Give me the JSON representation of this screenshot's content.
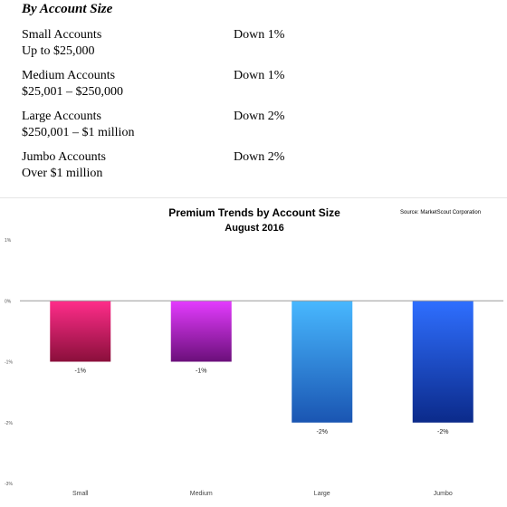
{
  "section": {
    "heading": "By Account Size",
    "rows": [
      {
        "name": "Small Accounts",
        "range": "Up to $25,000",
        "change": "Down 1%"
      },
      {
        "name": "Medium Accounts",
        "range": "$25,001 – $250,000",
        "change": "Down 1%"
      },
      {
        "name": "Large Accounts",
        "range": "$250,001 – $1 million",
        "change": "Down 2%"
      },
      {
        "name": "Jumbo Accounts",
        "range": "Over $1 million",
        "change": "Down 2%"
      }
    ]
  },
  "chart_data": {
    "type": "bar",
    "title": "Premium Trends by Account Size",
    "subtitle": "August 2016",
    "source": "Source: MarketScout Corporation",
    "categories": [
      "Small",
      "Medium",
      "Large",
      "Jumbo"
    ],
    "values": [
      -1,
      -1,
      -2,
      -2
    ],
    "data_labels": [
      "-1%",
      "-1%",
      "-2%",
      "-2%"
    ],
    "ylim": [
      -3,
      1
    ],
    "yticks": [
      1,
      0,
      -1,
      -2,
      -3
    ],
    "ytick_labels": [
      "1%",
      "0%",
      "-1%",
      "-2%",
      "-3%"
    ],
    "grid": false,
    "legend": "none",
    "colors": [
      [
        "#ff2d8a",
        "#8a0f3b"
      ],
      [
        "#e43cff",
        "#6b0f7a"
      ],
      [
        "#48b8ff",
        "#1a55b2"
      ],
      [
        "#2f6fff",
        "#0b2a8a"
      ]
    ],
    "axis_color": "#9a9a9a"
  }
}
